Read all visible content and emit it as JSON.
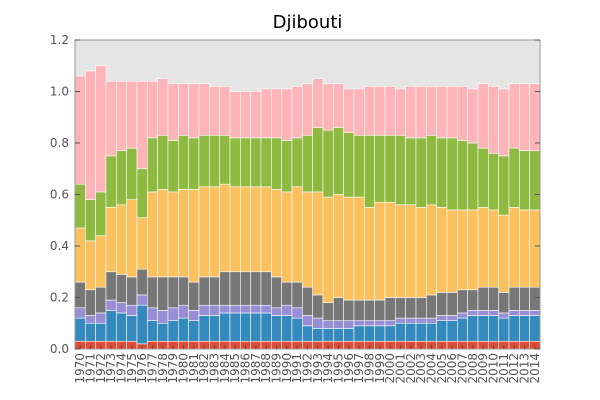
{
  "chart_data": {
    "type": "bar",
    "stacked": true,
    "title": "Djibouti",
    "xlabel": "",
    "ylabel": "",
    "ylim": [
      0,
      1.2
    ],
    "yticks": [
      0.0,
      0.2,
      0.4,
      0.6,
      0.8,
      1.0,
      1.2
    ],
    "ytick_labels": [
      "0.0",
      "0.2",
      "0.4",
      "0.6",
      "0.8",
      "1.0",
      "1.2"
    ],
    "grid": false,
    "legend": "none",
    "background_color": "#e5e5e5",
    "categories": [
      "1970",
      "1971",
      "1972",
      "1973",
      "1974",
      "1975",
      "1976",
      "1977",
      "1978",
      "1979",
      "1980",
      "1981",
      "1982",
      "1983",
      "1984",
      "1985",
      "1986",
      "1987",
      "1988",
      "1989",
      "1990",
      "1991",
      "1992",
      "1993",
      "1994",
      "1995",
      "1996",
      "1997",
      "1998",
      "1999",
      "2000",
      "2001",
      "2002",
      "2003",
      "2004",
      "2005",
      "2006",
      "2007",
      "2008",
      "2009",
      "2010",
      "2011",
      "2012",
      "2013",
      "2014"
    ],
    "series": [
      {
        "color": "#e24a33",
        "values": [
          0.03,
          0.03,
          0.03,
          0.03,
          0.03,
          0.03,
          0.02,
          0.03,
          0.03,
          0.03,
          0.03,
          0.03,
          0.03,
          0.03,
          0.03,
          0.03,
          0.03,
          0.03,
          0.03,
          0.03,
          0.03,
          0.03,
          0.03,
          0.03,
          0.03,
          0.03,
          0.03,
          0.03,
          0.03,
          0.03,
          0.03,
          0.03,
          0.03,
          0.03,
          0.03,
          0.03,
          0.03,
          0.03,
          0.03,
          0.03,
          0.03,
          0.03,
          0.03,
          0.03,
          0.03
        ]
      },
      {
        "color": "#348abd",
        "values": [
          0.09,
          0.07,
          0.07,
          0.12,
          0.11,
          0.1,
          0.15,
          0.08,
          0.07,
          0.08,
          0.09,
          0.08,
          0.1,
          0.1,
          0.11,
          0.11,
          0.11,
          0.11,
          0.11,
          0.1,
          0.1,
          0.09,
          0.06,
          0.05,
          0.05,
          0.05,
          0.05,
          0.06,
          0.06,
          0.06,
          0.06,
          0.07,
          0.07,
          0.07,
          0.07,
          0.08,
          0.08,
          0.09,
          0.1,
          0.1,
          0.1,
          0.09,
          0.1,
          0.1,
          0.1
        ]
      },
      {
        "color": "#988ed5",
        "values": [
          0.04,
          0.03,
          0.04,
          0.04,
          0.04,
          0.04,
          0.04,
          0.05,
          0.05,
          0.05,
          0.05,
          0.04,
          0.04,
          0.04,
          0.03,
          0.03,
          0.03,
          0.03,
          0.03,
          0.03,
          0.04,
          0.04,
          0.04,
          0.04,
          0.03,
          0.03,
          0.03,
          0.02,
          0.02,
          0.02,
          0.02,
          0.02,
          0.02,
          0.02,
          0.02,
          0.02,
          0.02,
          0.02,
          0.02,
          0.02,
          0.02,
          0.02,
          0.02,
          0.02,
          0.02
        ]
      },
      {
        "color": "#777777",
        "values": [
          0.1,
          0.1,
          0.1,
          0.11,
          0.11,
          0.11,
          0.1,
          0.12,
          0.13,
          0.12,
          0.11,
          0.11,
          0.11,
          0.11,
          0.13,
          0.13,
          0.13,
          0.13,
          0.13,
          0.12,
          0.09,
          0.1,
          0.11,
          0.09,
          0.07,
          0.09,
          0.08,
          0.08,
          0.08,
          0.08,
          0.09,
          0.08,
          0.08,
          0.08,
          0.09,
          0.09,
          0.09,
          0.09,
          0.08,
          0.09,
          0.09,
          0.08,
          0.09,
          0.09,
          0.09
        ]
      },
      {
        "color": "#fbc15e",
        "values": [
          0.21,
          0.19,
          0.2,
          0.25,
          0.27,
          0.3,
          0.2,
          0.33,
          0.34,
          0.33,
          0.34,
          0.36,
          0.35,
          0.35,
          0.34,
          0.33,
          0.33,
          0.33,
          0.33,
          0.34,
          0.35,
          0.37,
          0.37,
          0.4,
          0.41,
          0.4,
          0.4,
          0.4,
          0.36,
          0.38,
          0.37,
          0.36,
          0.36,
          0.35,
          0.35,
          0.33,
          0.32,
          0.31,
          0.31,
          0.31,
          0.3,
          0.3,
          0.31,
          0.3,
          0.3
        ]
      },
      {
        "color": "#8eba42",
        "values": [
          0.17,
          0.16,
          0.17,
          0.2,
          0.21,
          0.2,
          0.19,
          0.21,
          0.21,
          0.2,
          0.21,
          0.2,
          0.2,
          0.2,
          0.19,
          0.19,
          0.19,
          0.19,
          0.19,
          0.2,
          0.2,
          0.19,
          0.22,
          0.25,
          0.26,
          0.26,
          0.25,
          0.24,
          0.28,
          0.26,
          0.26,
          0.27,
          0.26,
          0.27,
          0.27,
          0.27,
          0.28,
          0.27,
          0.26,
          0.23,
          0.22,
          0.23,
          0.23,
          0.23,
          0.23
        ]
      },
      {
        "color": "#ffb5b8",
        "values": [
          0.42,
          0.5,
          0.49,
          0.29,
          0.27,
          0.26,
          0.34,
          0.22,
          0.22,
          0.22,
          0.2,
          0.21,
          0.2,
          0.19,
          0.19,
          0.18,
          0.18,
          0.18,
          0.19,
          0.19,
          0.2,
          0.2,
          0.2,
          0.19,
          0.18,
          0.17,
          0.17,
          0.18,
          0.19,
          0.19,
          0.19,
          0.18,
          0.2,
          0.2,
          0.19,
          0.2,
          0.2,
          0.21,
          0.21,
          0.25,
          0.26,
          0.26,
          0.25,
          0.26,
          0.26
        ]
      }
    ]
  }
}
